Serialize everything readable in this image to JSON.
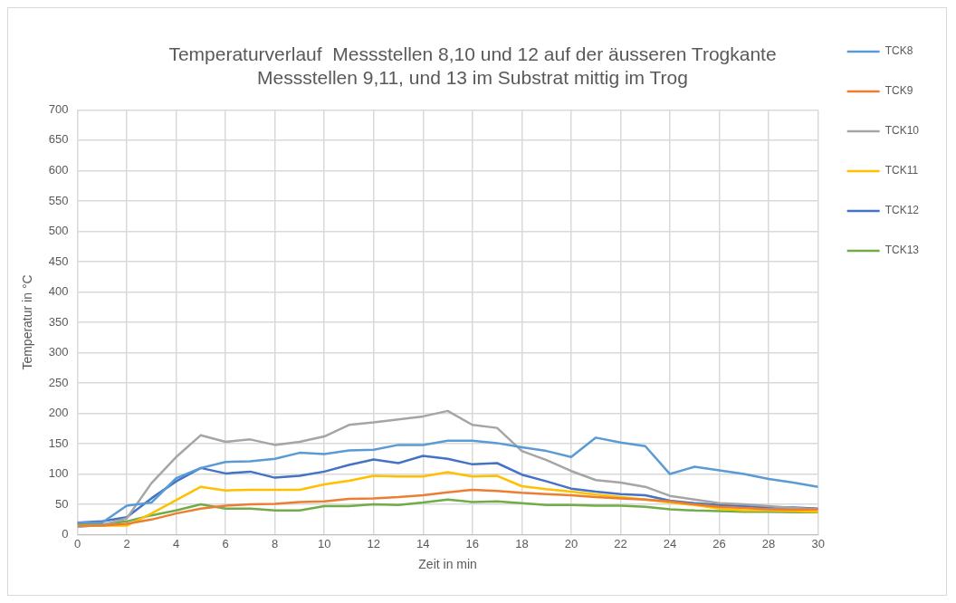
{
  "chart_data": {
    "type": "line",
    "title": [
      "Temperaturverlauf  Messstellen 8,10 und 12 auf der äusseren Trogkante",
      "Messstellen 9,11, und 13 im Substrat mittig im Trog"
    ],
    "xlabel": "Zeit in min",
    "ylabel": "Temperatur in °C",
    "x": [
      0,
      1,
      2,
      3,
      4,
      5,
      6,
      7,
      8,
      9,
      10,
      11,
      12,
      13,
      14,
      15,
      16,
      17,
      18,
      19,
      20,
      21,
      22,
      23,
      24,
      25,
      26,
      27,
      28,
      29,
      30
    ],
    "xlim": [
      0,
      30
    ],
    "xticks": [
      0,
      2,
      4,
      6,
      8,
      10,
      12,
      14,
      16,
      18,
      20,
      22,
      24,
      26,
      28,
      30
    ],
    "ylim": [
      0,
      700
    ],
    "yticks": [
      0,
      50,
      100,
      150,
      200,
      250,
      300,
      350,
      400,
      450,
      500,
      550,
      600,
      650,
      700
    ],
    "grid": true,
    "legend": "right",
    "marker": "none",
    "line_style": "solid",
    "series": [
      {
        "name": "TCK8",
        "color": "#5b9bd5",
        "values": [
          20,
          20,
          48,
          53,
          93,
          110,
          120,
          121,
          125,
          135,
          133,
          139,
          140,
          148,
          148,
          155,
          155,
          151,
          144,
          138,
          128,
          160,
          152,
          146,
          100,
          112,
          106,
          100,
          92,
          86,
          79
        ]
      },
      {
        "name": "TCK9",
        "color": "#ed7d31",
        "values": [
          15,
          15,
          18,
          25,
          35,
          43,
          48,
          50,
          51,
          54,
          55,
          59,
          60,
          62,
          65,
          70,
          74,
          72,
          69,
          67,
          65,
          62,
          60,
          58,
          55,
          50,
          46,
          44,
          42,
          41,
          42
        ]
      },
      {
        "name": "TCK10",
        "color": "#a5a5a5",
        "values": [
          13,
          16,
          27,
          85,
          128,
          164,
          153,
          157,
          148,
          153,
          162,
          181,
          185,
          190,
          195,
          204,
          181,
          176,
          138,
          123,
          105,
          90,
          86,
          79,
          64,
          58,
          52,
          50,
          47,
          44,
          42
        ]
      },
      {
        "name": "TCK11",
        "color": "#ffc000",
        "values": [
          15,
          15,
          15,
          35,
          57,
          79,
          73,
          74,
          74,
          74,
          83,
          89,
          97,
          96,
          96,
          103,
          96,
          97,
          80,
          75,
          71,
          66,
          62,
          58,
          53,
          49,
          43,
          40,
          40,
          39,
          38
        ]
      },
      {
        "name": "TCK12",
        "color": "#4472c4",
        "values": [
          20,
          22,
          29,
          60,
          88,
          110,
          101,
          104,
          94,
          97,
          104,
          115,
          124,
          118,
          130,
          125,
          116,
          118,
          99,
          88,
          76,
          71,
          67,
          65,
          56,
          52,
          49,
          47,
          45,
          45,
          43
        ]
      },
      {
        "name": "TCK13",
        "color": "#70ad47",
        "values": [
          17,
          17,
          22,
          32,
          40,
          50,
          43,
          43,
          40,
          40,
          47,
          47,
          50,
          49,
          53,
          58,
          54,
          55,
          52,
          49,
          49,
          48,
          48,
          46,
          42,
          40,
          39,
          38,
          38,
          37,
          37
        ]
      }
    ]
  }
}
